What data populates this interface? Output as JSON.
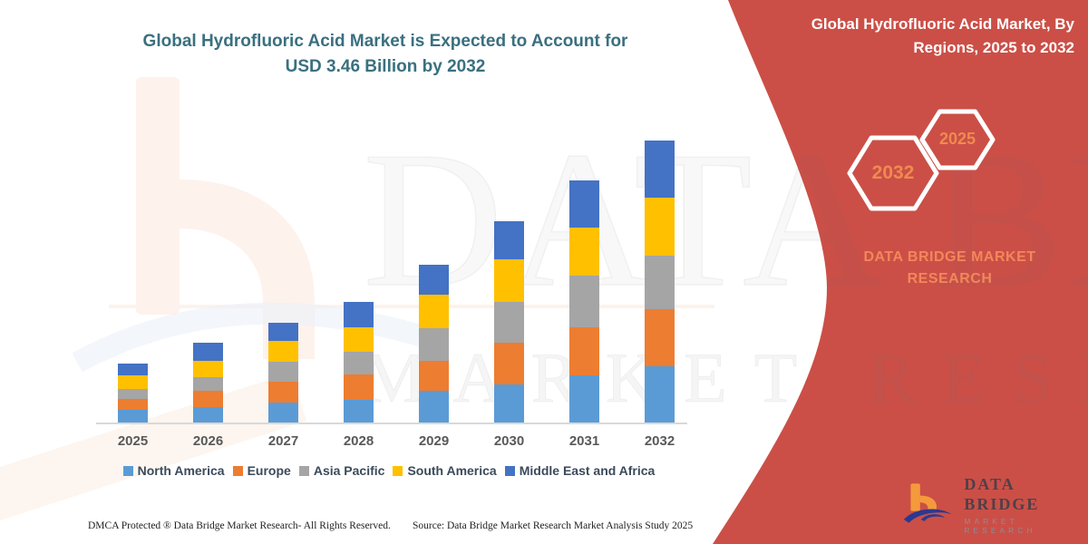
{
  "main_title": "Global Hydrofluoric Acid Market is Expected to Account for USD 3.46 Billion by 2032",
  "side_panel": {
    "bg_color": "#CB4F47",
    "title": "Global Hydrofluoric Acid Market, By Regions, 2025 to 2032",
    "hexagons": [
      {
        "label": "2032"
      },
      {
        "label": "2025"
      }
    ],
    "brand_text": "DATA BRIDGE MARKET RESEARCH",
    "accent_color": "#EF8A50"
  },
  "watermark": {
    "line1": "DATA BRIDGE",
    "line2": "MARKET RESEARCH"
  },
  "footer": {
    "dmca": "DMCA Protected ® Data Bridge Market Research-  All Rights Reserved.",
    "source": "Source: Data Bridge Market Research  Market Analysis Study 2025"
  },
  "logo": {
    "name_text": "DATA BRIDGE",
    "sub_text": "MARKET RESEARCH"
  },
  "chart_data": {
    "type": "bar",
    "stacked": true,
    "title": "Global Hydrofluoric Acid Market is Expected to Account for USD 3.46 Billion by 2032",
    "unit": "USD Billion",
    "categories": [
      "2025",
      "2026",
      "2027",
      "2028",
      "2029",
      "2030",
      "2031",
      "2032"
    ],
    "series": [
      {
        "name": "North America",
        "color": "#5B9BD5",
        "values": [
          0.16,
          0.19,
          0.24,
          0.28,
          0.39,
          0.47,
          0.58,
          0.69
        ]
      },
      {
        "name": "Europe",
        "color": "#ED7D31",
        "values": [
          0.13,
          0.2,
          0.26,
          0.31,
          0.37,
          0.51,
          0.59,
          0.7
        ]
      },
      {
        "name": "Asia Pacific",
        "color": "#A5A5A5",
        "values": [
          0.12,
          0.17,
          0.24,
          0.28,
          0.4,
          0.5,
          0.63,
          0.65
        ]
      },
      {
        "name": "South America",
        "color": "#FFC000",
        "values": [
          0.17,
          0.2,
          0.26,
          0.3,
          0.41,
          0.52,
          0.59,
          0.72
        ]
      },
      {
        "name": "Middle East and Africa",
        "color": "#4472C4",
        "values": [
          0.14,
          0.22,
          0.22,
          0.31,
          0.36,
          0.47,
          0.58,
          0.7
        ]
      }
    ],
    "totals": [
      0.72,
      0.98,
      1.22,
      1.48,
      1.93,
      2.47,
      2.97,
      3.46
    ],
    "xlabel": "",
    "ylabel": "",
    "ylim": [
      0,
      3.5
    ],
    "grid": false,
    "legend_position": "bottom"
  }
}
